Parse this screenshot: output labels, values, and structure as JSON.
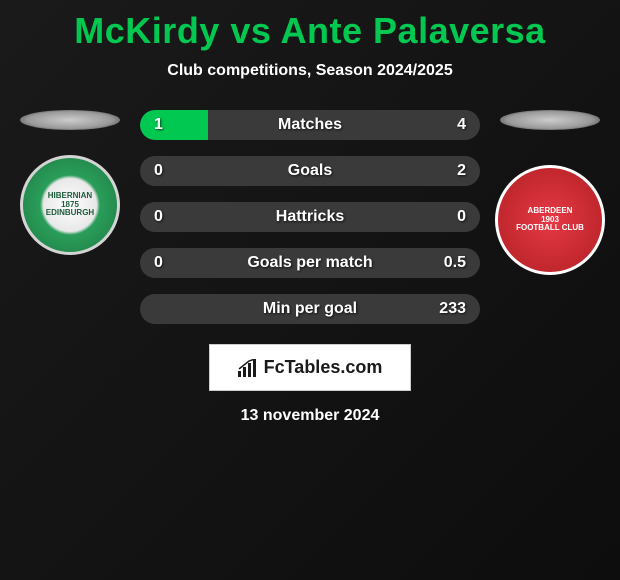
{
  "title": "McKirdy vs Ante Palaversa",
  "subtitle": "Club competitions, Season 2024/2025",
  "title_color": "#00c851",
  "text_color": "#ffffff",
  "bar_bg_color": "#3a3a3a",
  "bar_fill_color": "#00c851",
  "background_color": "#0d0d0d",
  "left_team": {
    "name": "Hibernian Edinburgh",
    "badge_text_top": "HIBERNIAN",
    "badge_text_mid": "1875",
    "badge_text_bot": "EDINBURGH",
    "badge_primary": "#1d7a42",
    "badge_secondary": "#ffffff"
  },
  "right_team": {
    "name": "Aberdeen Football Club",
    "badge_text_top": "ABERDEEN",
    "badge_text_mid": "1903",
    "badge_text_bot": "FOOTBALL CLUB",
    "badge_primary": "#e63946",
    "badge_secondary": "#ffffff"
  },
  "stats": [
    {
      "label": "Matches",
      "left_val": "1",
      "right_val": "4",
      "left_pct": 20
    },
    {
      "label": "Goals",
      "left_val": "0",
      "right_val": "2",
      "left_pct": 0
    },
    {
      "label": "Hattricks",
      "left_val": "0",
      "right_val": "0",
      "left_pct": 0
    },
    {
      "label": "Goals per match",
      "left_val": "0",
      "right_val": "0.5",
      "left_pct": 0
    },
    {
      "label": "Min per goal",
      "left_val": "",
      "right_val": "233",
      "left_pct": 0
    }
  ],
  "brand": "FcTables.com",
  "date": "13 november 2024",
  "font_sizes": {
    "title": 36,
    "subtitle": 16,
    "stat_label": 16,
    "stat_val": 16,
    "date": 16,
    "brand": 18
  }
}
